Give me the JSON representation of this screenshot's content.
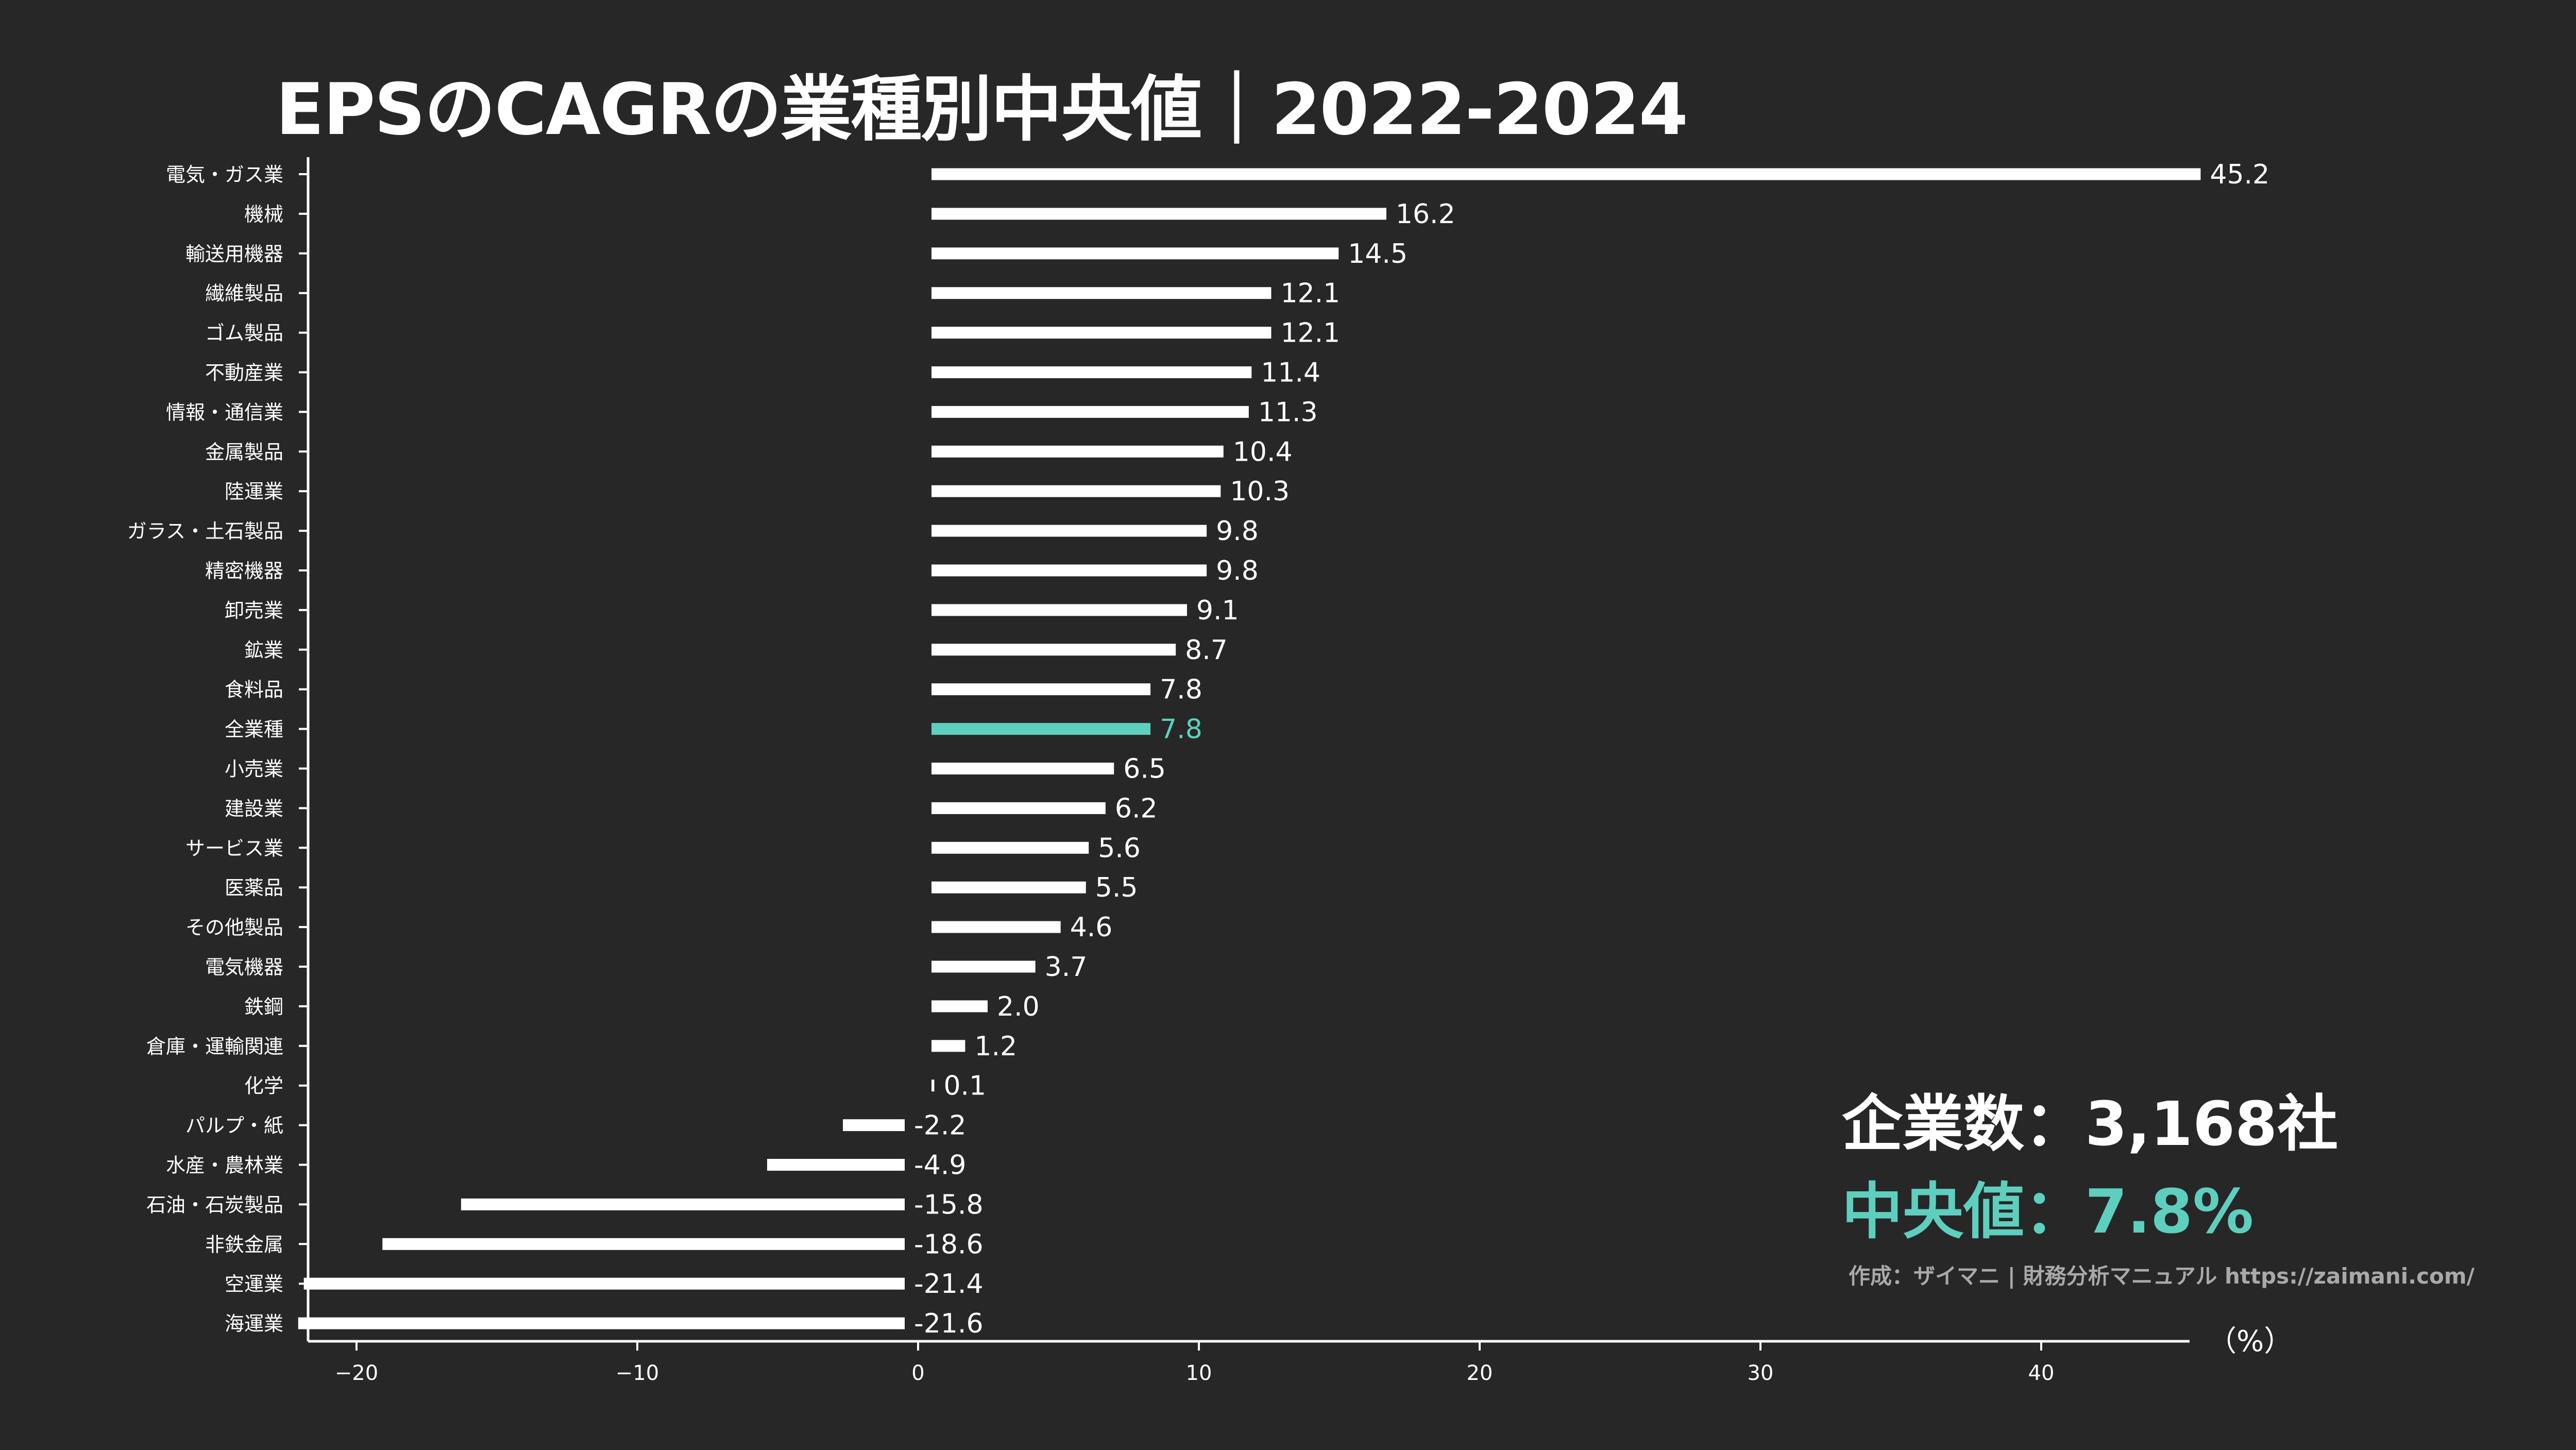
{
  "header": {
    "title": "EPSのCAGRの業種別中央値｜2022-2024"
  },
  "stats": {
    "count_label": "企業数：3,168社",
    "median_label": "中央値：7.8%"
  },
  "footer": {
    "credit": "作成：ザイマニ | 財務分析マニュアル https://zaimani.com/"
  },
  "colors": {
    "background": "#272727",
    "bar": "#ffffff",
    "highlight": "#5ecfbf",
    "axis": "#ffffff"
  },
  "chart_data": {
    "type": "bar",
    "orientation": "horizontal",
    "unit_label": "（%）",
    "xlim": [
      -22,
      45.2
    ],
    "xticks": [
      -20,
      -10,
      0,
      10,
      20,
      30,
      40
    ],
    "xtick_labels": [
      "−20",
      "−10",
      "0",
      "10",
      "20",
      "30",
      "40"
    ],
    "highlight_category": "全業種",
    "categories": [
      "電気・ガス業",
      "機械",
      "輸送用機器",
      "繊維製品",
      "ゴム製品",
      "不動産業",
      "情報・通信業",
      "金属製品",
      "陸運業",
      "ガラス・土石製品",
      "精密機器",
      "卸売業",
      "鉱業",
      "食料品",
      "全業種",
      "小売業",
      "建設業",
      "サービス業",
      "医薬品",
      "その他製品",
      "電気機器",
      "鉄鋼",
      "倉庫・運輸関連",
      "化学",
      "パルプ・紙",
      "水産・農林業",
      "石油・石炭製品",
      "非鉄金属",
      "空運業",
      "海運業"
    ],
    "values": [
      45.2,
      16.2,
      14.5,
      12.1,
      12.1,
      11.4,
      11.3,
      10.4,
      10.3,
      9.8,
      9.8,
      9.1,
      8.7,
      7.8,
      7.8,
      6.5,
      6.2,
      5.6,
      5.5,
      4.6,
      3.7,
      2.0,
      1.2,
      0.1,
      -2.2,
      -4.9,
      -15.8,
      -18.6,
      -21.4,
      -21.6
    ],
    "value_labels": [
      "45.2",
      "16.2",
      "14.5",
      "12.1",
      "12.1",
      "11.4",
      "11.3",
      "10.4",
      "10.3",
      "9.8",
      "9.8",
      "9.1",
      "8.7",
      "7.8",
      "7.8",
      "6.5",
      "6.2",
      "5.6",
      "5.5",
      "4.6",
      "3.7",
      "2.0",
      "1.2",
      "0.1",
      "-2.2",
      "-4.9",
      "-15.8",
      "-18.6",
      "-21.4",
      "-21.6"
    ]
  }
}
